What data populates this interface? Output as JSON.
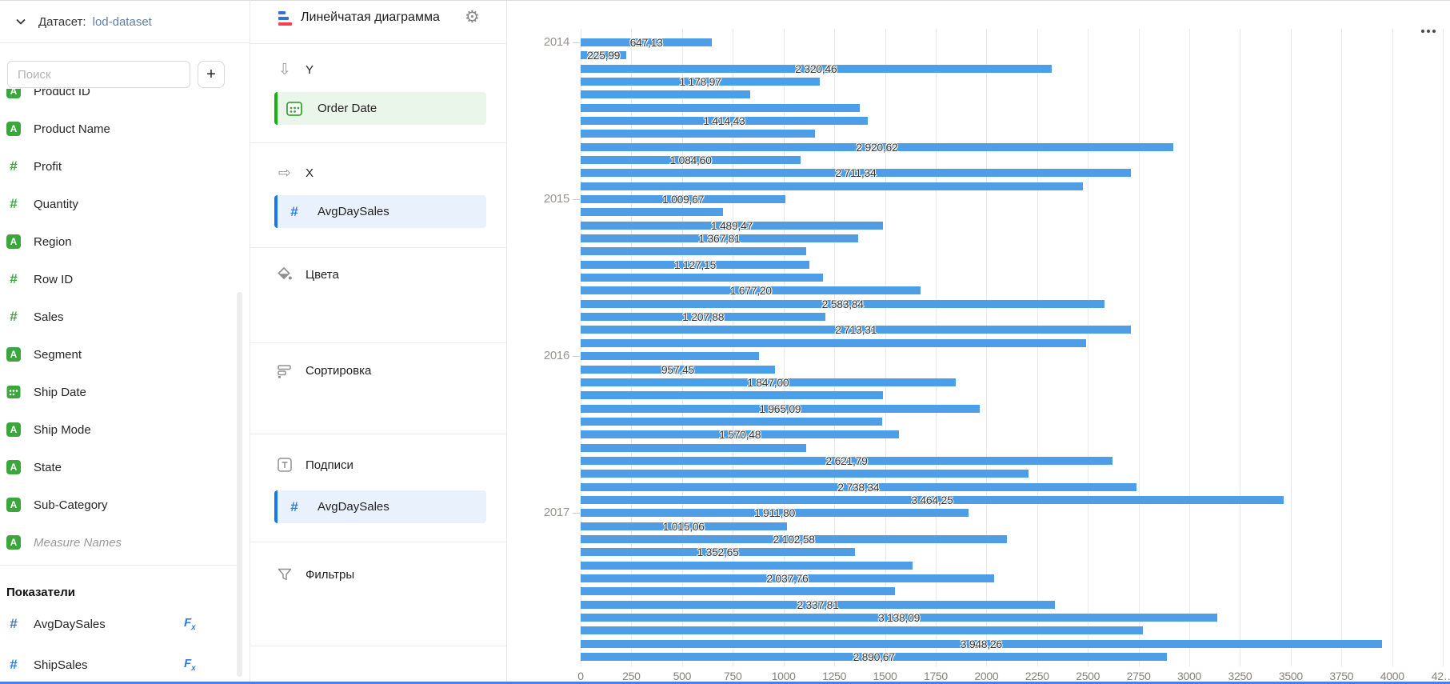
{
  "dataset_panel": {
    "header": {
      "label": "Датасет:",
      "name": "lod-dataset"
    },
    "search": {
      "placeholder": "Поиск",
      "add_button": "+"
    },
    "fields": [
      {
        "name": "Product ID",
        "type": "string"
      },
      {
        "name": "Product Name",
        "type": "string"
      },
      {
        "name": "Profit",
        "type": "number"
      },
      {
        "name": "Quantity",
        "type": "number"
      },
      {
        "name": "Region",
        "type": "string"
      },
      {
        "name": "Row ID",
        "type": "number"
      },
      {
        "name": "Sales",
        "type": "number"
      },
      {
        "name": "Segment",
        "type": "string"
      },
      {
        "name": "Ship Date",
        "type": "date"
      },
      {
        "name": "Ship Mode",
        "type": "string"
      },
      {
        "name": "State",
        "type": "string"
      },
      {
        "name": "Sub-Category",
        "type": "string"
      },
      {
        "name": "Measure Names",
        "type": "string",
        "italic": true
      }
    ],
    "measures_header": "Показатели",
    "measures": [
      {
        "name": "AvgDaySales",
        "fx": "Fx"
      },
      {
        "name": "ShipSales",
        "fx": "Fx"
      }
    ]
  },
  "config_panel": {
    "title": "Линейчатая диаграмма",
    "sections": {
      "y": {
        "label": "Y",
        "field": "Order Date"
      },
      "x": {
        "label": "X",
        "field": "AvgDaySales"
      },
      "colors": {
        "label": "Цвета"
      },
      "sort": {
        "label": "Сортировка"
      },
      "labels": {
        "label": "Подписи",
        "field": "AvgDaySales"
      },
      "filters": {
        "label": "Фильтры"
      }
    }
  },
  "chart_data": {
    "type": "bar",
    "orientation": "horizontal",
    "series_name": "AvgDaySales",
    "y_axis_label": "Order Date",
    "y_groups": [
      "2014",
      "2015",
      "2016",
      "2017"
    ],
    "bars_per_group": 12,
    "x_ticks": [
      "0",
      "250",
      "500",
      "750",
      "1000",
      "1250",
      "1500",
      "1750",
      "2000",
      "2250",
      "2500",
      "2750",
      "3000",
      "3250",
      "3500",
      "3750",
      "4000",
      "42…"
    ],
    "xlim": [
      0,
      4250
    ],
    "grid": "vertical",
    "legend": false,
    "value_format": "ru: space thousands, comma decimals",
    "groups": [
      {
        "year": "2014",
        "bars": [
          [
            647.13,
            "647,13"
          ],
          [
            225.99,
            "225,99"
          ],
          [
            2320.46,
            "2 320,46"
          ],
          [
            1178.97,
            "1 178,97"
          ],
          [
            835,
            null
          ],
          [
            1375,
            null
          ],
          [
            1414.43,
            "1 414,43"
          ],
          [
            1155,
            null
          ],
          [
            2920.62,
            "2 920,62"
          ],
          [
            1084.6,
            "1 084,60"
          ],
          [
            2711.34,
            "2 711,34"
          ],
          [
            2475,
            null
          ]
        ]
      },
      {
        "year": "2015",
        "bars": [
          [
            1009.67,
            "1 009,67"
          ],
          [
            700,
            null
          ],
          [
            1489.47,
            "1 489,47"
          ],
          [
            1367.81,
            "1 367,81"
          ],
          [
            1113,
            null
          ],
          [
            1127.15,
            "1 127,15"
          ],
          [
            1195,
            null
          ],
          [
            1677.2,
            "1 677,20"
          ],
          [
            2583.84,
            "2 583,84"
          ],
          [
            1207.88,
            "1 207,88"
          ],
          [
            2713.31,
            "2 713,31"
          ],
          [
            2490,
            null
          ]
        ]
      },
      {
        "year": "2016",
        "bars": [
          [
            878,
            null
          ],
          [
            957.45,
            "957,45"
          ],
          [
            1847.0,
            "1 847,00"
          ],
          [
            1490,
            null
          ],
          [
            1965.09,
            "1 965,09"
          ],
          [
            1488,
            null
          ],
          [
            1570.48,
            "1 570,48"
          ],
          [
            1110,
            null
          ],
          [
            2621.79,
            "2 621,79"
          ],
          [
            2207,
            null
          ],
          [
            2738.34,
            "2 738,34"
          ],
          [
            3464.25,
            "3 464,25"
          ]
        ]
      },
      {
        "year": "2017",
        "bars": [
          [
            1911.8,
            "1 911,80"
          ],
          [
            1015.06,
            "1 015,06"
          ],
          [
            2102.58,
            "2 102,58"
          ],
          [
            1352.65,
            "1 352,65"
          ],
          [
            1637,
            null
          ],
          [
            2037.76,
            "2 037,76"
          ],
          [
            1551,
            null
          ],
          [
            2337.81,
            "2 337,81"
          ],
          [
            3138.09,
            "3 138,09"
          ],
          [
            2770,
            null
          ],
          [
            3948.26,
            "3 948,26"
          ],
          [
            2890.67,
            "2 890,67"
          ]
        ]
      }
    ]
  },
  "colors": {
    "bar": "#4d9ee7",
    "green_icon": "#3aa63c",
    "blue_icon": "#2f7de1",
    "grid": "#e9e9e9",
    "accent_green": "#17b117",
    "accent_blue": "#1677f2"
  }
}
